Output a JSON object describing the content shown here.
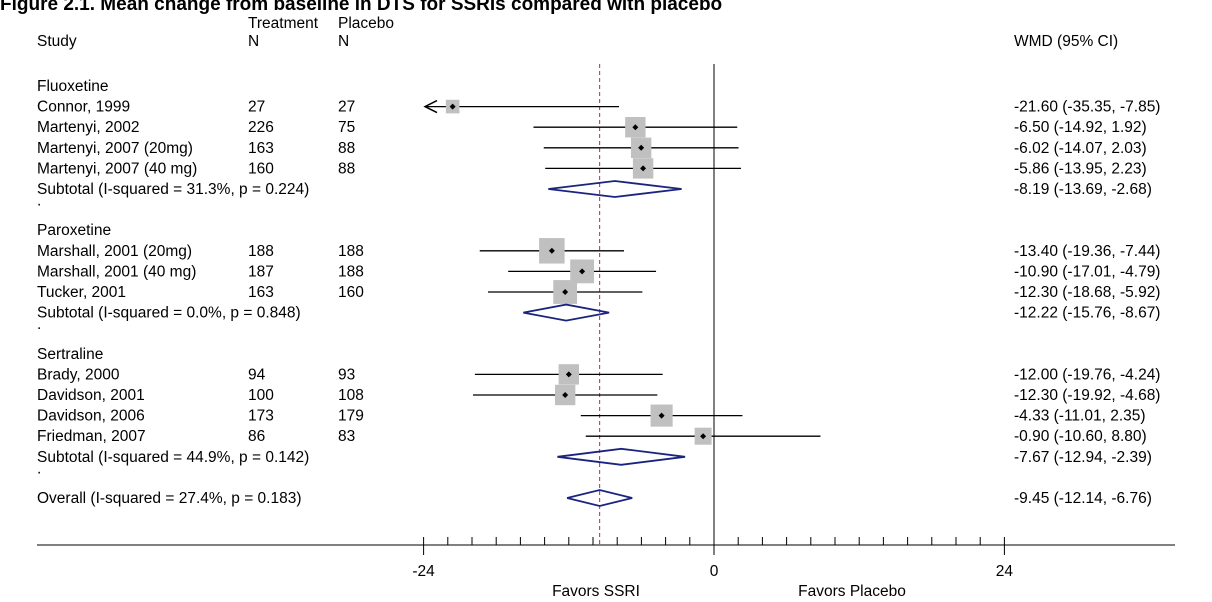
{
  "figure_title": "Figure 2.1. Mean change from baseline in DTS for SSRIs compared with placebo",
  "headers": {
    "study": "Study",
    "treatment_line1": "Treatment",
    "treatment_line2": "N",
    "placebo_line1": "Placebo",
    "placebo_line2": "N",
    "wmd": "WMD (95% CI)"
  },
  "colors": {
    "null_line": "#000000",
    "overall_line": "#b03030",
    "box": "#c0c0c0",
    "diamond": "#1a237e"
  },
  "axis": {
    "ticks": [
      {
        "value": -24,
        "label": "-24"
      },
      {
        "value": 0,
        "label": "0"
      },
      {
        "value": 24,
        "label": "24"
      }
    ],
    "minor_step": 2,
    "left_label": "Favors SSRI",
    "right_label": "Favors Placebo"
  },
  "chart_data": {
    "type": "forest",
    "measure": "WMD (95% CI)",
    "x_range": [
      -24,
      24
    ],
    "null_value": 0,
    "overall_estimate": -9.45,
    "groups": [
      {
        "name": "Fluoxetine",
        "studies": [
          {
            "study": "Connor, 1999",
            "treatment_n": "27",
            "placebo_n": "27",
            "wmd": -21.6,
            "lo": -35.35,
            "hi": -7.85,
            "ci_text": "-21.60 (-35.35, -7.85)",
            "weight": 0.8
          },
          {
            "study": "Martenyi, 2002",
            "treatment_n": "226",
            "placebo_n": "75",
            "wmd": -6.5,
            "lo": -14.92,
            "hi": 1.92,
            "ci_text": "-6.50 (-14.92, 1.92)",
            "weight": 1.2
          },
          {
            "study": "Martenyi, 2007 (20mg)",
            "treatment_n": "163",
            "placebo_n": "88",
            "wmd": -6.02,
            "lo": -14.07,
            "hi": 2.03,
            "ci_text": "-6.02 (-14.07, 2.03)",
            "weight": 1.2
          },
          {
            "study": "Martenyi, 2007 (40 mg)",
            "treatment_n": "160",
            "placebo_n": "88",
            "wmd": -5.86,
            "lo": -13.95,
            "hi": 2.23,
            "ci_text": "-5.86 (-13.95, 2.23)",
            "weight": 1.2
          }
        ],
        "subtotal": {
          "label": "Subtotal  (I-squared = 31.3%, p = 0.224)",
          "wmd": -8.19,
          "lo": -13.69,
          "hi": -2.68,
          "ci_text": "-8.19 (-13.69, -2.68)"
        }
      },
      {
        "name": "Paroxetine",
        "studies": [
          {
            "study": "Marshall, 2001 (20mg)",
            "treatment_n": "188",
            "placebo_n": "188",
            "wmd": -13.4,
            "lo": -19.36,
            "hi": -7.44,
            "ci_text": "-13.40 (-19.36, -7.44)",
            "weight": 1.5
          },
          {
            "study": "Marshall, 2001 (40 mg)",
            "treatment_n": "187",
            "placebo_n": "188",
            "wmd": -10.9,
            "lo": -17.01,
            "hi": -4.79,
            "ci_text": "-10.90 (-17.01, -4.79)",
            "weight": 1.4
          },
          {
            "study": "Tucker, 2001",
            "treatment_n": "163",
            "placebo_n": "160",
            "wmd": -12.3,
            "lo": -18.68,
            "hi": -5.92,
            "ci_text": "-12.30 (-18.68, -5.92)",
            "weight": 1.4
          }
        ],
        "subtotal": {
          "label": "Subtotal  (I-squared = 0.0%, p = 0.848)",
          "wmd": -12.22,
          "lo": -15.76,
          "hi": -8.67,
          "ci_text": "-12.22 (-15.76, -8.67)"
        }
      },
      {
        "name": "Sertraline",
        "studies": [
          {
            "study": "Brady, 2000",
            "treatment_n": "94",
            "placebo_n": "93",
            "wmd": -12.0,
            "lo": -19.76,
            "hi": -4.24,
            "ci_text": "-12.00 (-19.76, -4.24)",
            "weight": 1.2
          },
          {
            "study": "Davidson, 2001",
            "treatment_n": "100",
            "placebo_n": "108",
            "wmd": -12.3,
            "lo": -19.92,
            "hi": -4.68,
            "ci_text": "-12.30 (-19.92, -4.68)",
            "weight": 1.2
          },
          {
            "study": "Davidson, 2006",
            "treatment_n": "173",
            "placebo_n": "179",
            "wmd": -4.33,
            "lo": -11.01,
            "hi": 2.35,
            "ci_text": "-4.33 (-11.01, 2.35)",
            "weight": 1.3
          },
          {
            "study": "Friedman, 2007",
            "treatment_n": "86",
            "placebo_n": "83",
            "wmd": -0.9,
            "lo": -10.6,
            "hi": 8.8,
            "ci_text": "-0.90 (-10.60, 8.80)",
            "weight": 1.0
          }
        ],
        "subtotal": {
          "label": "Subtotal  (I-squared = 44.9%, p = 0.142)",
          "wmd": -7.67,
          "lo": -12.94,
          "hi": -2.39,
          "ci_text": "-7.67 (-12.94, -2.39)"
        }
      }
    ],
    "spacer_text": ".",
    "overall": {
      "label": "Overall  (I-squared = 27.4%, p = 0.183)",
      "wmd": -9.45,
      "lo": -12.14,
      "hi": -6.76,
      "ci_text": "-9.45 (-12.14, -6.76)"
    }
  }
}
